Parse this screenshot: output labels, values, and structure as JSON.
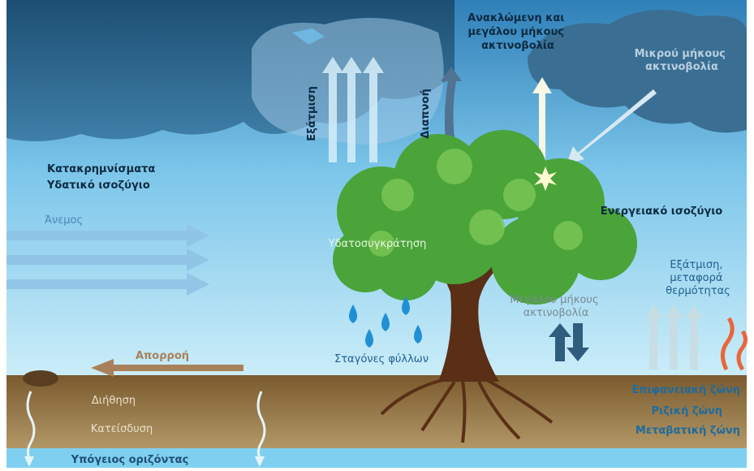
{
  "labels": {
    "reflected_radiation": [
      "Ανακλώμενη και",
      "μεγάλου μήκους",
      "ακτινοβολία"
    ],
    "short_wave_radiation": [
      "Μικρού μήκους",
      "ακτινοβολία"
    ],
    "evaporation": "Εξάτμιση",
    "transpiration": "Διαπνοή",
    "precipitation": [
      "Κατακρημνίσματα",
      "Υδατικό ισοζύγιο"
    ],
    "wind": "Άνεμος",
    "interception": "Υδατοσυγκράτηση",
    "energy_balance": "Ενεργειακό ισοζύγιο",
    "evaporation_heat": [
      "Εξάτμιση,",
      "μεταφορά",
      "θερμότητας"
    ],
    "long_wave_radiation": [
      "Μεγάλου μήκους",
      "ακτινοβολία"
    ],
    "leaf_drops": "Σταγόνες φύλλων",
    "runoff": "Απορροή",
    "infiltration": "Διήθηση",
    "percolation": "Κατείσδυση",
    "groundwater": "Υπόγειος οριζόντας",
    "surface_zone": "Επιφανειακή ζώνη",
    "root_zone": "Ριζική ζώνη",
    "transition_zone": "Μεταβατική ζώνη"
  }
}
